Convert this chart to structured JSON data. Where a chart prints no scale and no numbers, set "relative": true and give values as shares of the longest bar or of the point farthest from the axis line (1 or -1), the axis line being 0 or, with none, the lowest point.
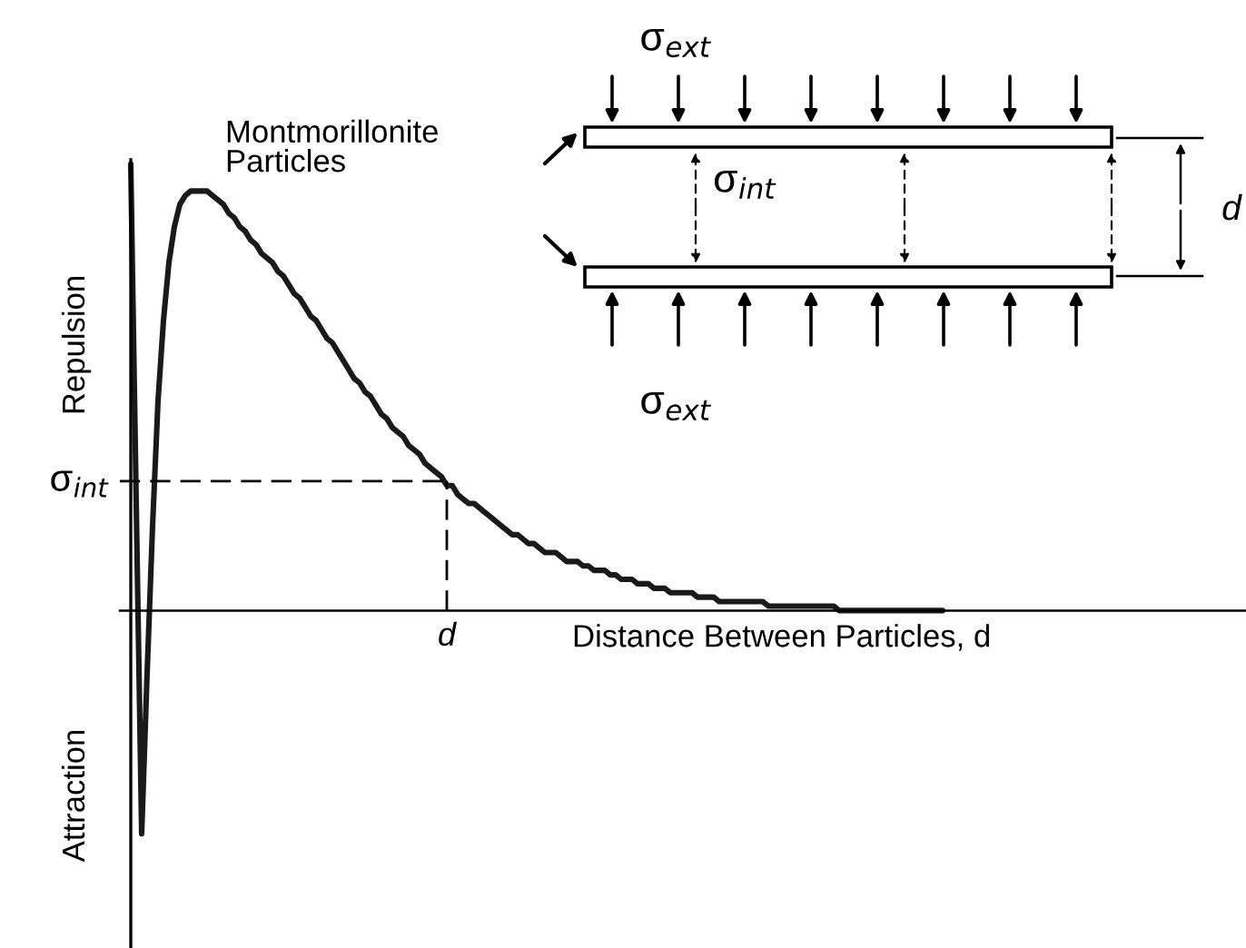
{
  "chart_data": {
    "type": "line",
    "relative": true,
    "color": "#1a1a1a",
    "xlabel": "Distance Between Particles, d",
    "ylabel": "Repulsion",
    "annotations": [
      "Attraction",
      "Montmorillonite\nParticles",
      "σ$_{ext}$",
      "σ$_{int}$",
      "σ$_{ext}$",
      "d",
      "d"
    ],
    "ref_lines": [
      {
        "axis": "y",
        "value": 0.29,
        "label": "σ$_{int}$",
        "line_style": "dashed"
      }
    ],
    "categories": [
      null,
      null,
      null,
      null,
      null,
      null,
      null,
      null,
      null,
      null,
      null,
      null,
      null,
      null,
      null,
      null,
      null,
      null,
      null,
      null,
      null,
      null,
      null,
      null,
      null,
      null,
      null,
      null,
      null,
      null,
      null,
      null,
      null,
      null,
      null,
      null,
      null,
      null,
      null,
      null,
      null,
      null,
      null,
      null,
      null,
      null,
      null,
      null,
      null,
      null,
      null,
      null,
      null,
      null,
      null,
      null,
      null,
      null,
      null,
      null,
      null,
      null,
      null,
      null,
      null,
      null,
      null,
      null,
      null,
      null,
      null,
      null,
      null,
      null,
      null,
      null,
      null,
      null,
      null,
      null,
      null,
      null,
      null,
      null,
      null,
      null,
      null,
      null,
      null,
      null,
      null,
      null,
      null,
      null,
      null,
      null,
      null,
      null,
      null,
      null,
      null,
      null,
      null,
      null,
      null,
      null,
      null,
      null,
      null,
      null,
      null,
      null,
      null,
      null,
      null,
      null,
      null,
      null,
      null,
      null,
      null,
      null,
      null,
      null,
      null,
      null,
      null,
      null,
      null,
      null,
      null,
      null,
      null,
      null,
      null,
      null,
      null,
      null,
      null,
      null,
      null,
      null,
      null,
      null,
      null,
      null,
      null,
      null,
      null,
      null
    ],
    "values": [
      1.0,
      0.24,
      -0.5,
      -0.14,
      0.19,
      0.47,
      0.65,
      0.78,
      0.86,
      0.91,
      0.93,
      0.94,
      0.94,
      0.94,
      0.94,
      0.93,
      0.92,
      0.91,
      0.89,
      0.88,
      0.86,
      0.85,
      0.83,
      0.82,
      0.8,
      0.79,
      0.78,
      0.76,
      0.75,
      0.73,
      0.71,
      0.7,
      0.68,
      0.66,
      0.65,
      0.63,
      0.61,
      0.6,
      0.58,
      0.56,
      0.54,
      0.52,
      0.51,
      0.49,
      0.48,
      0.46,
      0.44,
      0.43,
      0.41,
      0.4,
      0.39,
      0.37,
      0.36,
      0.35,
      0.33,
      0.32,
      0.31,
      0.3,
      0.28,
      0.28,
      0.26,
      0.25,
      0.24,
      0.24,
      0.23,
      0.22,
      0.21,
      0.2,
      0.19,
      0.18,
      0.17,
      0.17,
      0.16,
      0.15,
      0.15,
      0.14,
      0.13,
      0.13,
      0.13,
      0.12,
      0.11,
      0.11,
      0.11,
      0.1,
      0.1,
      0.09,
      0.09,
      0.09,
      0.08,
      0.08,
      0.07,
      0.07,
      0.07,
      0.06,
      0.06,
      0.06,
      0.05,
      0.05,
      0.05,
      0.04,
      0.04,
      0.04,
      0.04,
      0.04,
      0.03,
      0.03,
      0.03,
      0.03,
      0.02,
      0.02,
      0.02,
      0.02,
      0.02,
      0.02,
      0.02,
      0.02,
      0.02,
      0.01,
      0.01,
      0.01,
      0.01,
      0.01,
      0.01,
      0.01,
      0.01,
      0.01,
      0.01,
      0.01,
      0.01,
      0.01,
      0.0,
      0.0,
      0.0,
      0.0,
      0.0,
      0.0,
      0.0,
      0.0,
      0.0,
      0.0,
      0.0,
      0.0,
      0.0,
      0.0,
      0.0,
      0.0,
      0.0,
      0.0,
      0.0,
      0.0
    ]
  }
}
